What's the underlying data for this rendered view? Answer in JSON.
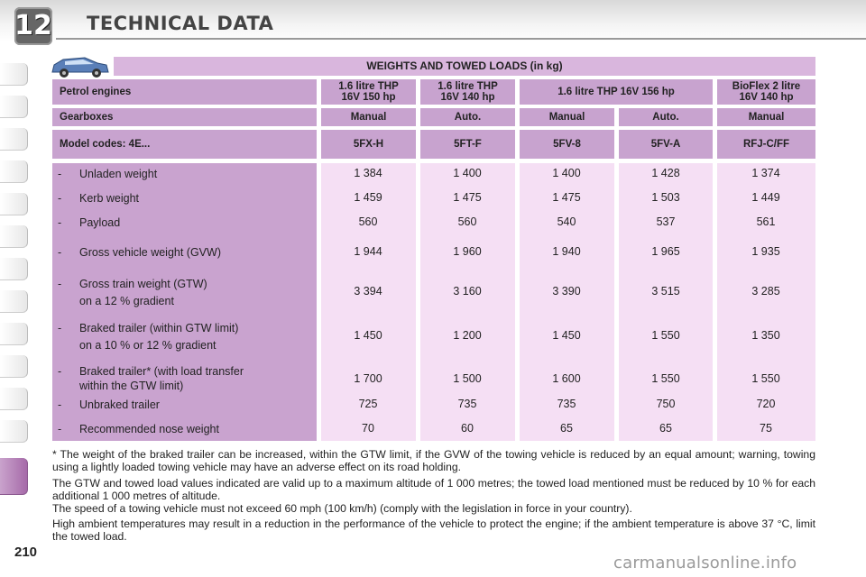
{
  "header": {
    "chapter_number": "12",
    "title": "TECHNICAL DATA"
  },
  "page_number": "210",
  "table": {
    "title": "WEIGHTS AND TOWED LOADS (in kg)",
    "engines_label": "Petrol engines",
    "engines": [
      [
        "1.6 litre THP",
        "16V 150 hp"
      ],
      [
        "1.6 litre THP",
        "16V 140 hp"
      ],
      [
        "1.6 litre THP 16V 156 hp"
      ],
      [
        "BioFlex 2 litre",
        "16V 140 hp"
      ]
    ],
    "gearboxes_label": "Gearboxes",
    "gearboxes": [
      "Manual",
      "Auto.",
      "Manual",
      "Auto.",
      "Manual"
    ],
    "model_codes_label": "Model codes: 4E...",
    "model_codes": [
      "5FX-H",
      "5FT-F",
      "5FV-8",
      "5FV-A",
      "RFJ-C/FF"
    ],
    "rows": [
      {
        "label": [
          "Unladen weight"
        ],
        "values": [
          "1 384",
          "1 400",
          "1 400",
          "1 428",
          "1 374"
        ]
      },
      {
        "label": [
          "Kerb weight"
        ],
        "values": [
          "1 459",
          "1 475",
          "1 475",
          "1 503",
          "1 449"
        ]
      },
      {
        "label": [
          "Payload"
        ],
        "values": [
          "560",
          "560",
          "540",
          "537",
          "561"
        ]
      },
      {
        "label": [
          "Gross vehicle weight (GVW)"
        ],
        "values": [
          "1 944",
          "1 960",
          "1 940",
          "1 965",
          "1 935"
        ]
      },
      {
        "label": [
          "Gross train weight (GTW)",
          "on a 12 % gradient"
        ],
        "values": [
          "3 394",
          "3 160",
          "3 390",
          "3 515",
          "3 285"
        ]
      },
      {
        "label": [
          "Braked trailer (within GTW limit)",
          "on a 10 % or 12 % gradient"
        ],
        "values": [
          "1 450",
          "1 200",
          "1 450",
          "1 550",
          "1 350"
        ]
      },
      {
        "label": [
          "Braked trailer* (with load transfer",
          "within the GTW limit)"
        ],
        "values": [
          "1 700",
          "1 500",
          "1 600",
          "1 550",
          "1 550"
        ]
      },
      {
        "label": [
          "Unbraked trailer"
        ],
        "values": [
          "725",
          "735",
          "735",
          "750",
          "720"
        ]
      },
      {
        "label": [
          "Recommended nose weight"
        ],
        "values": [
          "70",
          "60",
          "65",
          "65",
          "75"
        ]
      }
    ],
    "row_dash": "-"
  },
  "notes": [
    "* The weight of the braked trailer can be increased, within the GTW limit, if the GVW of the towing vehicle is reduced by an equal amount; warning, towing using a lightly loaded towing vehicle may have an adverse effect on its road holding.",
    "The GTW and towed load values indicated are valid up to a maximum altitude of 1 000 metres; the towed load mentioned must be reduced by 10 % for each additional 1 000 metres of altitude.",
    "The speed of a towing vehicle must not exceed 60 mph (100 km/h) (comply with the legislation in force in your country).",
    "High ambient temperatures may result in a reduction in the performance of the vehicle to protect the engine; if the ambient temperature is above 37 °C, limit the towed load."
  ],
  "watermark": "carmanualsonline.info",
  "colors": {
    "header_purple": "#c8a3cf",
    "title_purple": "#d9b6dd",
    "cell_pink": "#f5dff4"
  },
  "icons": {
    "car": "car-icon"
  }
}
